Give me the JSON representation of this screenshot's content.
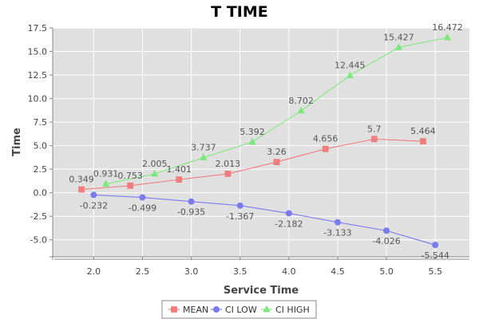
{
  "chart_data": {
    "type": "line",
    "title": "T TIME",
    "xlabel": "Service Time",
    "ylabel": "Time",
    "xlim": [
      1.58,
      5.85
    ],
    "ylim": [
      -6.8,
      17.5
    ],
    "xticks": [
      "2.0",
      "2.5",
      "3.0",
      "3.5",
      "4.0",
      "4.5",
      "5.0",
      "5.5"
    ],
    "yticks": [
      "17.5",
      "15.0",
      "12.5",
      "10.0",
      "7.5",
      "5.0",
      "2.5",
      "0.0",
      "-2.5",
      "-5.0"
    ],
    "grid": true,
    "legend_position": "bottom",
    "series": [
      {
        "name": "MEAN",
        "color": "#f07d7d",
        "marker": "square",
        "x": [
          1.875,
          2.375,
          2.875,
          3.375,
          3.875,
          4.375,
          4.875,
          5.375
        ],
        "values": [
          0.349,
          0.753,
          1.401,
          2.013,
          3.26,
          4.656,
          5.7,
          5.464
        ],
        "labels": [
          "0.349",
          "0.753",
          "1.401",
          "2.013",
          "3.26",
          "4.656",
          "5.7",
          "5.464"
        ]
      },
      {
        "name": "CI LOW",
        "color": "#7b7bf0",
        "marker": "circle",
        "x": [
          2.0,
          2.5,
          3.0,
          3.5,
          4.0,
          4.5,
          5.0,
          5.5
        ],
        "values": [
          -0.232,
          -0.499,
          -0.935,
          -1.367,
          -2.182,
          -3.133,
          -4.026,
          -5.544
        ],
        "labels": [
          "-0.232",
          "-0.499",
          "-0.935",
          "-1.367",
          "-2.182",
          "-3.133",
          "-4.026",
          "-5.544"
        ]
      },
      {
        "name": "CI HIGH",
        "color": "#7ee87e",
        "marker": "triangle",
        "x": [
          2.125,
          2.625,
          3.125,
          3.625,
          4.125,
          4.625,
          5.125,
          5.625
        ],
        "values": [
          0.931,
          2.005,
          3.737,
          5.392,
          8.702,
          12.445,
          15.427,
          16.472
        ],
        "labels": [
          "0.931",
          "2.005",
          "3.737",
          "5.392",
          "8.702",
          "12.445",
          "15.427",
          "16.472"
        ]
      }
    ]
  }
}
